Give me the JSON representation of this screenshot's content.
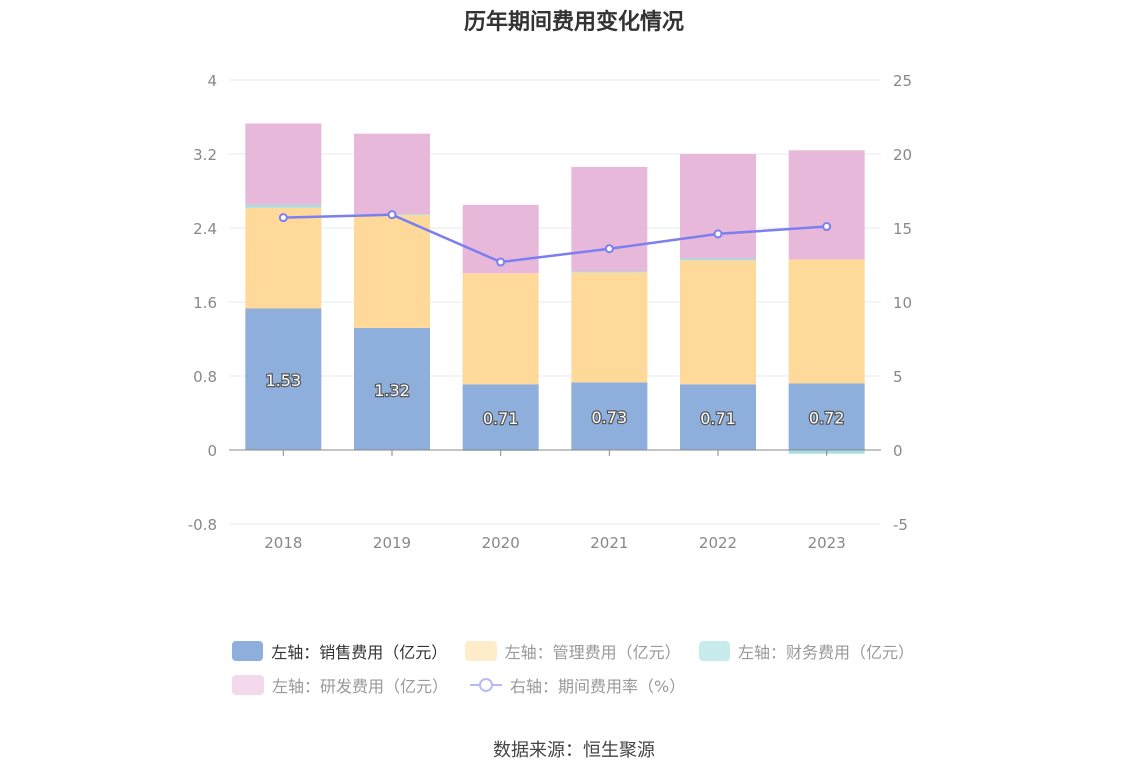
{
  "chart_data": {
    "type": "bar",
    "title": "历年期间费用变化情况",
    "categories": [
      "2018",
      "2019",
      "2020",
      "2021",
      "2022",
      "2023"
    ],
    "left_axis": {
      "min": -0.8,
      "max": 4,
      "ticks": [
        "-0.8",
        "0",
        "0.8",
        "1.6",
        "2.4",
        "3.2",
        "4"
      ]
    },
    "right_axis": {
      "min": -5,
      "max": 25,
      "ticks": [
        "-5",
        "0",
        "5",
        "10",
        "15",
        "20",
        "25"
      ]
    },
    "series": [
      {
        "name": "左轴：销售费用（亿元）",
        "type": "bar",
        "axis": "left",
        "color": "#8eaedb",
        "values": [
          1.53,
          1.32,
          0.71,
          0.73,
          0.71,
          0.72
        ],
        "labels": [
          "1.53",
          "1.32",
          "0.71",
          "0.73",
          "0.71",
          "0.72"
        ]
      },
      {
        "name": "左轴：管理费用（亿元）",
        "type": "bar",
        "axis": "left",
        "color": "#ffd999",
        "values": [
          1.09,
          1.22,
          1.2,
          1.19,
          1.34,
          1.34
        ]
      },
      {
        "name": "左轴：财务费用（亿元）",
        "type": "bar",
        "axis": "left",
        "color": "#a8dfe3",
        "values": [
          0.03,
          0.01,
          -0.01,
          0.01,
          0.02,
          -0.04
        ]
      },
      {
        "name": "左轴：研发费用（亿元）",
        "type": "bar",
        "axis": "left",
        "color": "#e8b8da",
        "values": [
          0.88,
          0.87,
          0.74,
          1.13,
          1.13,
          1.18
        ]
      },
      {
        "name": "右轴：期间费用率（%）",
        "type": "line",
        "axis": "right",
        "color": "#7b7ff0",
        "values": [
          15.7,
          15.9,
          12.7,
          13.6,
          14.6,
          15.1
        ]
      }
    ],
    "legend_position": "bottom",
    "grid": true
  },
  "source": "数据来源：恒生聚源"
}
